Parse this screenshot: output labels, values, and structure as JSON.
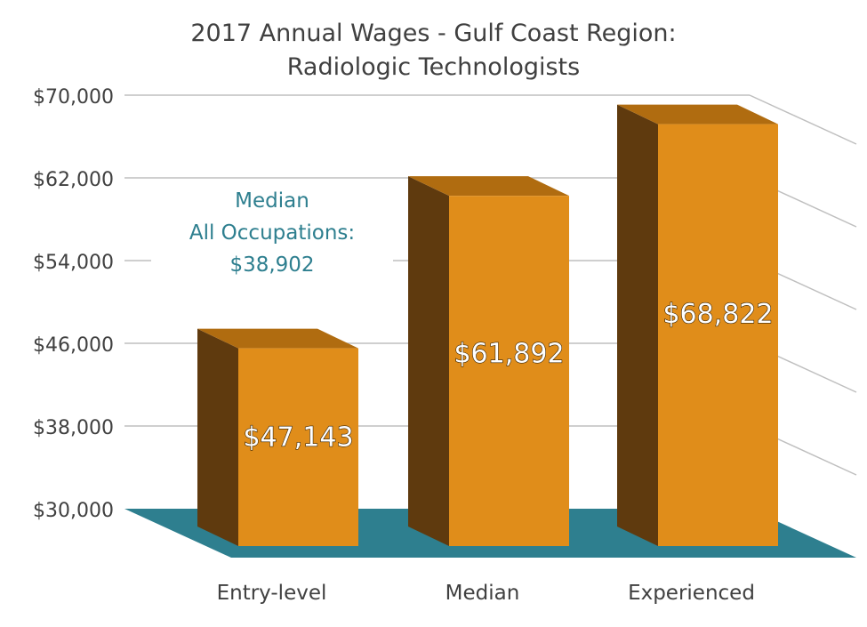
{
  "chart_data": {
    "type": "bar",
    "title_line1": "2017 Annual Wages - Gulf Coast Region:",
    "title_line2": "Radiologic Technologists",
    "categories": [
      "Entry-level",
      "Median",
      "Experienced"
    ],
    "values": [
      47143,
      61892,
      68822
    ],
    "data_labels": [
      "$47,143",
      "$61,892",
      "$68,822"
    ],
    "ylim": [
      30000,
      70000
    ],
    "yticks": [
      30000,
      38000,
      46000,
      54000,
      62000,
      70000
    ],
    "ytick_labels": [
      "$30,000",
      "$38,000",
      "$46,000",
      "$54,000",
      "$62,000",
      "$70,000"
    ],
    "annotation": {
      "line1": "Median",
      "line2": "All Occupations:",
      "line3": "$38,902"
    },
    "colors": {
      "bar_front": "#e08d1a",
      "bar_side": "#5f3a0e",
      "bar_top": "#b06c10",
      "floor": "#2e7f8f",
      "gridline": "#bfbfbf",
      "annotation_text": "#2e7f8f"
    }
  }
}
